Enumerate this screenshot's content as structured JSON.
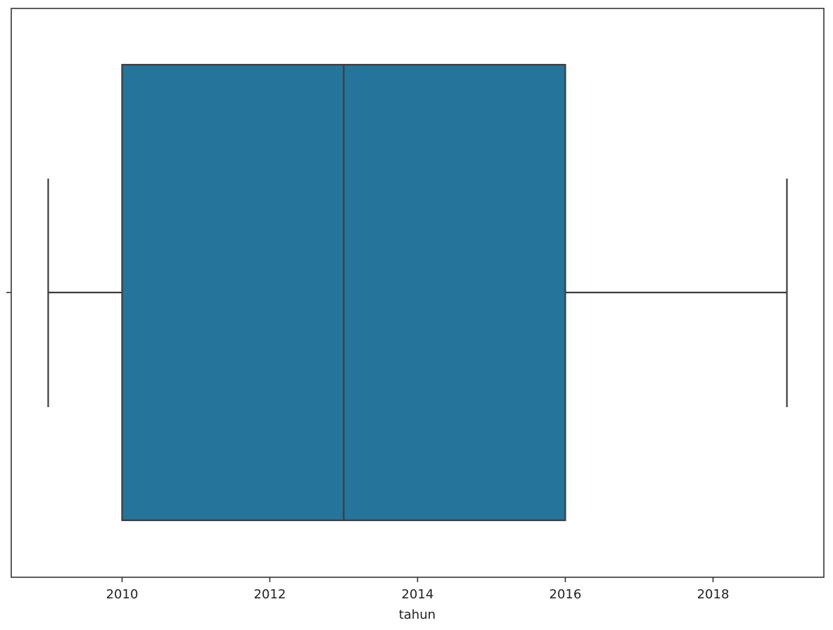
{
  "chart_data": {
    "type": "box",
    "x_label": "tahun",
    "min": 2009,
    "q1": 2010,
    "median": 2013,
    "q3": 2016,
    "max": 2019,
    "color": "#24749c",
    "xlim": [
      2008.5,
      2019.5
    ],
    "xticks": [
      2010,
      2012,
      2014,
      2016,
      2018
    ]
  }
}
